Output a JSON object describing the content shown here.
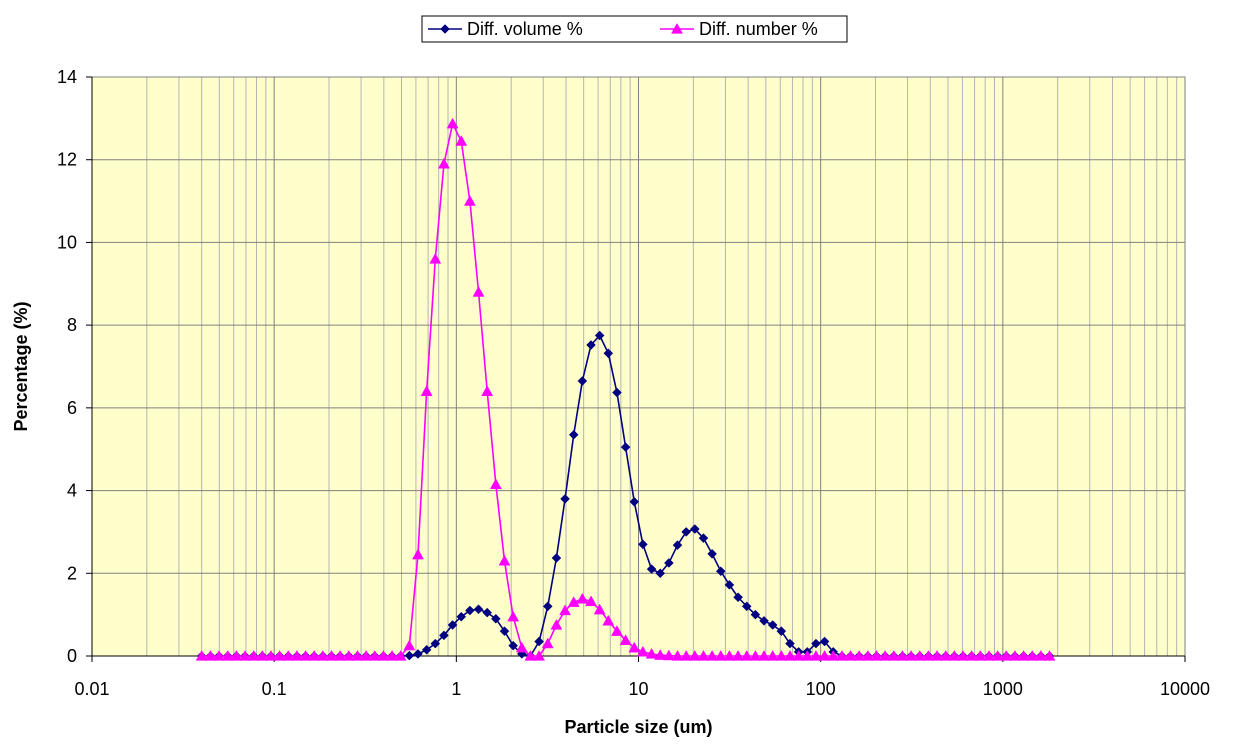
{
  "chart_data": {
    "type": "line",
    "xscale": "log",
    "xlabel": "Particle size (um)",
    "ylabel": "Percentage (%)",
    "xlim": [
      0.01,
      10000
    ],
    "ylim": [
      0,
      14
    ],
    "xticks": [
      "0.01",
      "0.1",
      "1",
      "10",
      "100",
      "1000",
      "10000"
    ],
    "yticks": [
      "0",
      "2",
      "4",
      "6",
      "8",
      "10",
      "12",
      "14"
    ],
    "grid": true,
    "plot_background": "#FFFFCC",
    "legend_position": "top-center",
    "x": [
      0.04,
      0.0447,
      0.0498,
      0.0556,
      0.062,
      0.0692,
      0.0772,
      0.0861,
      0.096,
      0.1071,
      0.1195,
      0.1333,
      0.1487,
      0.1659,
      0.185,
      0.2064,
      0.2302,
      0.2568,
      0.2865,
      0.3196,
      0.3565,
      0.3977,
      0.4437,
      0.4949,
      0.5521,
      0.6159,
      0.6871,
      0.7665,
      0.855,
      0.9538,
      1.064,
      1.187,
      1.324,
      1.477,
      1.648,
      1.838,
      2.051,
      2.288,
      2.552,
      2.847,
      3.176,
      3.543,
      3.952,
      4.409,
      4.918,
      5.487,
      6.121,
      6.828,
      7.617,
      8.497,
      9.479,
      10.57,
      11.8,
      13.16,
      14.68,
      16.37,
      18.27,
      20.38,
      22.73,
      25.36,
      28.29,
      31.56,
      35.21,
      39.28,
      43.82,
      48.88,
      54.53,
      60.83,
      67.86,
      75.7,
      84.45,
      94.21,
      105.1,
      117.2,
      130.8,
      145.9,
      162.7,
      181.5,
      202.5,
      225.9,
      252,
      281.2,
      313.6,
      349.9,
      390.3,
      435.4,
      485.7,
      541.9,
      604.5,
      674.3,
      752.2,
      839.2,
      936.2,
      1044,
      1165,
      1300,
      1450,
      1617,
      1804
    ],
    "series": [
      {
        "name": "Diff. volume %",
        "color": "#000080",
        "marker": "diamond",
        "values": [
          0,
          0,
          0,
          0,
          0,
          0,
          0,
          0,
          0,
          0,
          0,
          0,
          0,
          0,
          0,
          0,
          0,
          0,
          0,
          0,
          0,
          0,
          0,
          0,
          0.01,
          0.05,
          0.15,
          0.3,
          0.5,
          0.75,
          0.95,
          1.1,
          1.13,
          1.05,
          0.9,
          0.6,
          0.25,
          0.05,
          0,
          0.35,
          1.2,
          2.37,
          3.8,
          5.35,
          6.65,
          7.52,
          7.75,
          7.32,
          6.37,
          5.05,
          3.73,
          2.7,
          2.1,
          2.0,
          2.25,
          2.68,
          3.0,
          3.07,
          2.85,
          2.47,
          2.05,
          1.72,
          1.42,
          1.2,
          1.0,
          0.85,
          0.75,
          0.6,
          0.3,
          0.1,
          0.1,
          0.3,
          0.35,
          0.1,
          0,
          0,
          0,
          0,
          0,
          0,
          0,
          0,
          0,
          0,
          0,
          0,
          0,
          0,
          0,
          0,
          0,
          0,
          0,
          0,
          0,
          0,
          0,
          0,
          0
        ]
      },
      {
        "name": "Diff. number %",
        "color": "#FF00FF",
        "marker": "triangle",
        "values": [
          0,
          0,
          0,
          0,
          0,
          0,
          0,
          0,
          0,
          0,
          0,
          0,
          0,
          0,
          0,
          0,
          0,
          0,
          0,
          0,
          0,
          0,
          0,
          0,
          0.25,
          2.45,
          6.4,
          9.6,
          11.9,
          12.87,
          12.45,
          11.0,
          8.8,
          6.4,
          4.15,
          2.3,
          0.95,
          0.2,
          0,
          0,
          0.3,
          0.75,
          1.1,
          1.3,
          1.38,
          1.32,
          1.12,
          0.85,
          0.6,
          0.38,
          0.2,
          0.1,
          0.05,
          0.02,
          0.01,
          0,
          0,
          0,
          0,
          0,
          0,
          0,
          0,
          0,
          0,
          0,
          0,
          0,
          0,
          0,
          0,
          0,
          0,
          0,
          0,
          0,
          0,
          0,
          0,
          0,
          0,
          0,
          0,
          0,
          0,
          0,
          0,
          0,
          0,
          0,
          0,
          0,
          0,
          0,
          0,
          0,
          0,
          0,
          0
        ]
      }
    ]
  }
}
